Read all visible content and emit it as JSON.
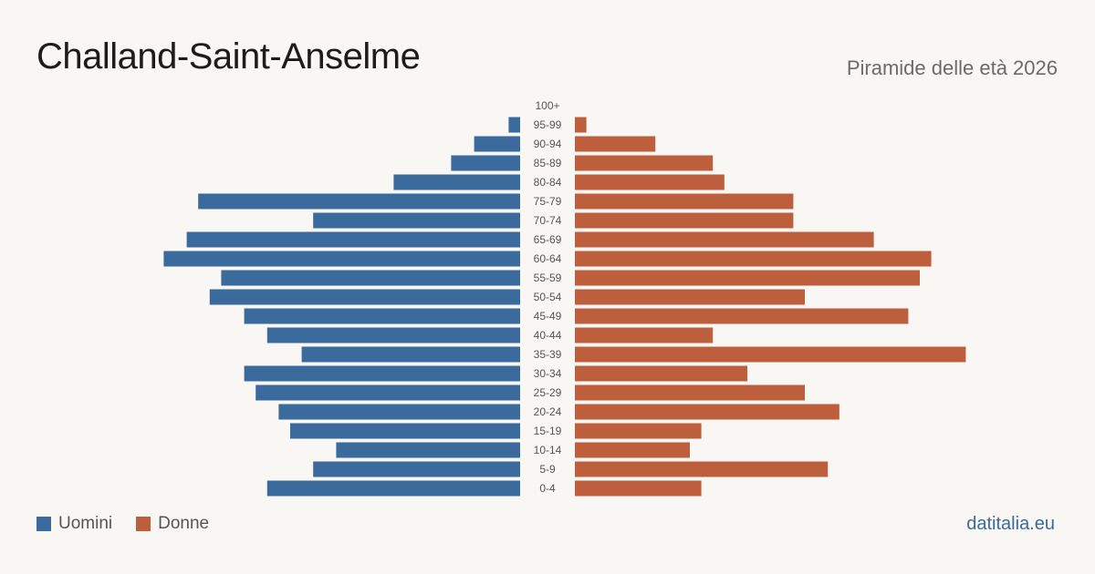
{
  "header": {
    "title": "Challand-Saint-Anselme",
    "subtitle": "Piramide delle età 2026"
  },
  "legend": {
    "men_label": "Uomini",
    "women_label": "Donne"
  },
  "footer": {
    "source": "datitalia.eu"
  },
  "colors": {
    "men": "#3b6a9c",
    "women": "#bd5e3c",
    "background": "#f9f7f3"
  },
  "chart_data": {
    "type": "bar",
    "orientation": "horizontal-pyramid",
    "categories": [
      "100+",
      "95-99",
      "90-94",
      "85-89",
      "80-84",
      "75-79",
      "70-74",
      "65-69",
      "60-64",
      "55-59",
      "50-54",
      "45-49",
      "40-44",
      "35-39",
      "30-34",
      "25-29",
      "20-24",
      "15-19",
      "10-14",
      "5-9",
      "0-4"
    ],
    "series": [
      {
        "name": "Uomini",
        "values": [
          0,
          1,
          4,
          6,
          11,
          28,
          18,
          29,
          31,
          26,
          27,
          24,
          22,
          19,
          24,
          23,
          21,
          20,
          16,
          18,
          22
        ]
      },
      {
        "name": "Donne",
        "values": [
          0,
          1,
          7,
          12,
          13,
          19,
          19,
          26,
          31,
          30,
          20,
          29,
          12,
          34,
          15,
          20,
          23,
          11,
          10,
          22,
          11
        ]
      }
    ],
    "legend_position": "bottom-left",
    "grid": false
  }
}
